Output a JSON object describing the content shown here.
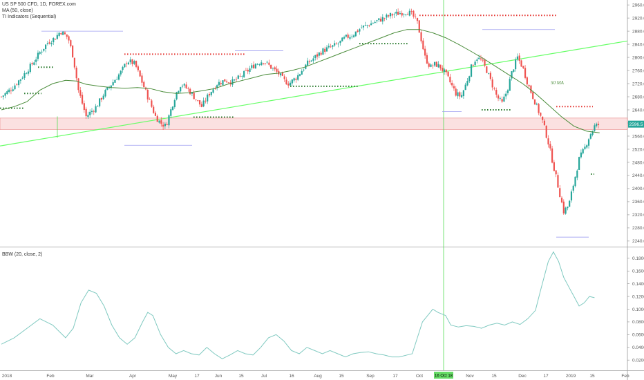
{
  "legend": {
    "symbol": "US SP 500 CFD, 1D, FOREX.com",
    "ma": "MA (50, close)",
    "ti": "TI Indicators (Sequential)",
    "bbw": "BBW (20, close, 2)"
  },
  "price_badge": "2596.5",
  "date_badge": "16 Oct 18",
  "annotation_ma": "50 MA",
  "colors": {
    "up": "#26a69a",
    "down": "#ef5350",
    "ma": "#4a8c3a",
    "trend": "#66ff66",
    "bbw": "#7fc9c0",
    "zone": "#f7c9c9",
    "dotted_red": "#e53935",
    "dotted_green": "#2e7d32",
    "level_line": "#9c9cf0"
  },
  "chart_data": [
    {
      "type": "candlestick",
      "title": "US SP 500 CFD, 1D, FOREX.com",
      "y_ticks": [
        "2960.0",
        "2920.0",
        "2880.0",
        "2840.0",
        "2800.0",
        "2760.0",
        "2720.0",
        "2680.0",
        "2640.0",
        "2600.0",
        "2560.0",
        "2520.0",
        "2480.0",
        "2440.0",
        "2400.0",
        "2360.0",
        "2320.0",
        "2280.0",
        "2240.0"
      ],
      "ylim": [
        2225,
        2975
      ],
      "x_ticks": [
        "2018",
        "Feb",
        "Mar",
        "Apr",
        "May",
        "17",
        "Jun",
        "15",
        "Jul",
        "16",
        "Aug",
        "15",
        "Sep",
        "17",
        "Oct",
        "Nov",
        "15",
        "Dec",
        "17",
        "2019",
        "15",
        "Feb"
      ],
      "price_path": [
        [
          0,
          2680
        ],
        [
          8,
          2705
        ],
        [
          16,
          2740
        ],
        [
          24,
          2780
        ],
        [
          30,
          2815
        ],
        [
          36,
          2845
        ],
        [
          42,
          2860
        ],
        [
          46,
          2880
        ],
        [
          52,
          2860
        ],
        [
          56,
          2800
        ],
        [
          60,
          2700
        ],
        [
          66,
          2620
        ],
        [
          74,
          2650
        ],
        [
          80,
          2690
        ],
        [
          88,
          2730
        ],
        [
          94,
          2760
        ],
        [
          98,
          2790
        ],
        [
          104,
          2780
        ],
        [
          108,
          2740
        ],
        [
          112,
          2700
        ],
        [
          116,
          2660
        ],
        [
          120,
          2620
        ],
        [
          124,
          2600
        ],
        [
          128,
          2590
        ],
        [
          132,
          2640
        ],
        [
          136,
          2690
        ],
        [
          140,
          2720
        ],
        [
          146,
          2700
        ],
        [
          152,
          2670
        ],
        [
          156,
          2650
        ],
        [
          162,
          2690
        ],
        [
          168,
          2720
        ],
        [
          174,
          2730
        ],
        [
          180,
          2725
        ],
        [
          186,
          2740
        ],
        [
          192,
          2760
        ],
        [
          198,
          2780
        ],
        [
          204,
          2790
        ],
        [
          210,
          2770
        ],
        [
          216,
          2750
        ],
        [
          220,
          2730
        ],
        [
          224,
          2720
        ],
        [
          230,
          2740
        ],
        [
          238,
          2780
        ],
        [
          244,
          2800
        ],
        [
          250,
          2820
        ],
        [
          256,
          2830
        ],
        [
          262,
          2840
        ],
        [
          268,
          2860
        ],
        [
          274,
          2870
        ],
        [
          280,
          2890
        ],
        [
          286,
          2900
        ],
        [
          292,
          2910
        ],
        [
          298,
          2920
        ],
        [
          304,
          2930
        ],
        [
          310,
          2935
        ],
        [
          316,
          2940
        ],
        [
          320,
          2930
        ],
        [
          324,
          2905
        ],
        [
          327,
          2855
        ],
        [
          330,
          2800
        ],
        [
          334,
          2770
        ],
        [
          338,
          2780
        ],
        [
          342,
          2770
        ],
        [
          346,
          2750
        ],
        [
          350,
          2720
        ],
        [
          354,
          2690
        ],
        [
          358,
          2680
        ],
        [
          362,
          2720
        ],
        [
          366,
          2770
        ],
        [
          370,
          2800
        ],
        [
          374,
          2790
        ],
        [
          378,
          2760
        ],
        [
          382,
          2720
        ],
        [
          386,
          2680
        ],
        [
          390,
          2660
        ],
        [
          394,
          2700
        ],
        [
          398,
          2760
        ],
        [
          402,
          2800
        ],
        [
          406,
          2770
        ],
        [
          410,
          2720
        ],
        [
          414,
          2680
        ],
        [
          418,
          2640
        ],
        [
          422,
          2600
        ],
        [
          426,
          2540
        ],
        [
          430,
          2470
        ],
        [
          434,
          2400
        ],
        [
          438,
          2330
        ],
        [
          442,
          2350
        ],
        [
          446,
          2420
        ],
        [
          450,
          2490
        ],
        [
          454,
          2520
        ],
        [
          458,
          2560
        ],
        [
          462,
          2590
        ],
        [
          466,
          2596
        ]
      ],
      "ma_50_path": [
        [
          0,
          2640
        ],
        [
          10,
          2650
        ],
        [
          20,
          2665
        ],
        [
          30,
          2700
        ],
        [
          40,
          2720
        ],
        [
          50,
          2730
        ],
        [
          58,
          2728
        ],
        [
          66,
          2718
        ],
        [
          76,
          2712
        ],
        [
          86,
          2708
        ],
        [
          96,
          2706
        ],
        [
          106,
          2708
        ],
        [
          116,
          2705
        ],
        [
          126,
          2695
        ],
        [
          136,
          2690
        ],
        [
          146,
          2692
        ],
        [
          156,
          2698
        ],
        [
          166,
          2705
        ],
        [
          176,
          2718
        ],
        [
          186,
          2728
        ],
        [
          196,
          2738
        ],
        [
          206,
          2748
        ],
        [
          216,
          2752
        ],
        [
          226,
          2760
        ],
        [
          236,
          2770
        ],
        [
          246,
          2785
        ],
        [
          256,
          2800
        ],
        [
          266,
          2815
        ],
        [
          276,
          2830
        ],
        [
          286,
          2845
        ],
        [
          296,
          2860
        ],
        [
          306,
          2875
        ],
        [
          316,
          2885
        ],
        [
          326,
          2885
        ],
        [
          336,
          2875
        ],
        [
          346,
          2860
        ],
        [
          356,
          2840
        ],
        [
          366,
          2818
        ],
        [
          376,
          2795
        ],
        [
          386,
          2770
        ],
        [
          396,
          2745
        ],
        [
          406,
          2720
        ],
        [
          416,
          2690
        ],
        [
          426,
          2655
        ],
        [
          436,
          2620
        ],
        [
          446,
          2590
        ],
        [
          456,
          2575
        ],
        [
          466,
          2570
        ]
      ],
      "resistance_zone": [
        2580,
        2615
      ]
    },
    {
      "type": "line",
      "title": "BBW (20, close, 2)",
      "y_ticks": [
        "0.1800",
        "0.1600",
        "0.1400",
        "0.1200",
        "0.1000",
        "0.0800",
        "0.0600",
        "0.0400",
        "0.0200"
      ],
      "ylim": [
        0.005,
        0.195
      ],
      "series": [
        {
          "values": [
            [
              0,
              0.045
            ],
            [
              10,
              0.055
            ],
            [
              20,
              0.07
            ],
            [
              30,
              0.085
            ],
            [
              40,
              0.075
            ],
            [
              50,
              0.055
            ],
            [
              56,
              0.07
            ],
            [
              62,
              0.11
            ],
            [
              68,
              0.13
            ],
            [
              74,
              0.125
            ],
            [
              80,
              0.105
            ],
            [
              86,
              0.075
            ],
            [
              92,
              0.055
            ],
            [
              98,
              0.045
            ],
            [
              104,
              0.055
            ],
            [
              110,
              0.08
            ],
            [
              114,
              0.095
            ],
            [
              118,
              0.09
            ],
            [
              124,
              0.06
            ],
            [
              130,
              0.04
            ],
            [
              136,
              0.03
            ],
            [
              142,
              0.035
            ],
            [
              148,
              0.03
            ],
            [
              154,
              0.028
            ],
            [
              160,
              0.04
            ],
            [
              166,
              0.03
            ],
            [
              172,
              0.022
            ],
            [
              178,
              0.028
            ],
            [
              184,
              0.035
            ],
            [
              190,
              0.03
            ],
            [
              196,
              0.028
            ],
            [
              202,
              0.04
            ],
            [
              208,
              0.055
            ],
            [
              214,
              0.06
            ],
            [
              220,
              0.05
            ],
            [
              226,
              0.035
            ],
            [
              232,
              0.03
            ],
            [
              238,
              0.04
            ],
            [
              244,
              0.035
            ],
            [
              250,
              0.03
            ],
            [
              256,
              0.035
            ],
            [
              262,
              0.03
            ],
            [
              268,
              0.025
            ],
            [
              274,
              0.03
            ],
            [
              280,
              0.032
            ],
            [
              286,
              0.033
            ],
            [
              292,
              0.03
            ],
            [
              298,
              0.028
            ],
            [
              304,
              0.025
            ],
            [
              310,
              0.025
            ],
            [
              316,
              0.028
            ],
            [
              320,
              0.03
            ],
            [
              324,
              0.055
            ],
            [
              328,
              0.08
            ],
            [
              332,
              0.09
            ],
            [
              336,
              0.1
            ],
            [
              340,
              0.095
            ],
            [
              346,
              0.09
            ],
            [
              350,
              0.075
            ],
            [
              356,
              0.072
            ],
            [
              362,
              0.074
            ],
            [
              368,
              0.073
            ],
            [
              374,
              0.07
            ],
            [
              380,
              0.075
            ],
            [
              386,
              0.078
            ],
            [
              392,
              0.075
            ],
            [
              398,
              0.08
            ],
            [
              404,
              0.076
            ],
            [
              410,
              0.085
            ],
            [
              416,
              0.098
            ],
            [
              420,
              0.13
            ],
            [
              426,
              0.175
            ],
            [
              430,
              0.19
            ],
            [
              434,
              0.175
            ],
            [
              438,
              0.15
            ],
            [
              442,
              0.135
            ],
            [
              446,
              0.12
            ],
            [
              450,
              0.105
            ],
            [
              454,
              0.11
            ],
            [
              458,
              0.12
            ],
            [
              462,
              0.118
            ]
          ]
        }
      ]
    }
  ]
}
